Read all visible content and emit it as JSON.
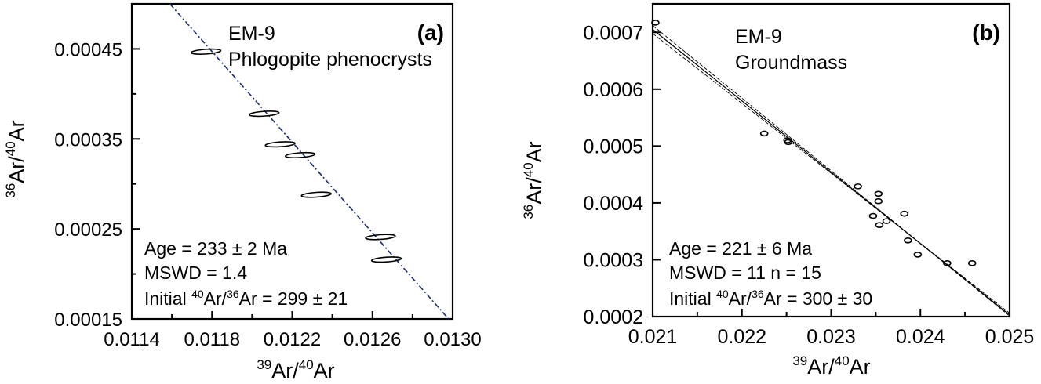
{
  "chart_data": [
    {
      "type": "scatter",
      "panel_label": "(a)",
      "sample": "EM-9",
      "material": "Phlogopite phenocrysts",
      "xlabel": {
        "pre": "",
        "sup1": "39",
        "mid": "Ar/",
        "sup2": "40",
        "post": "Ar"
      },
      "ylabel": {
        "pre": "",
        "sup1": "36",
        "mid": "Ar/",
        "sup2": "40",
        "post": "Ar"
      },
      "xlim": [
        0.0114,
        0.013
      ],
      "ylim": [
        0.00015,
        0.0005
      ],
      "xticks": [
        "0.0114",
        "0.0118",
        "0.0122",
        "0.0126",
        "0.0130"
      ],
      "xtick_values": [
        0.0114,
        0.0118,
        0.0122,
        0.0126,
        0.013
      ],
      "yticks": [
        "0.00015",
        "0.00025",
        "0.00035",
        "0.00045"
      ],
      "ytick_values": [
        0.00015,
        0.00025,
        0.00035,
        0.00045
      ],
      "points": [
        {
          "x": 0.01177,
          "y": 0.000447
        },
        {
          "x": 0.01206,
          "y": 0.000378
        },
        {
          "x": 0.01214,
          "y": 0.000344
        },
        {
          "x": 0.01224,
          "y": 0.000332
        },
        {
          "x": 0.01232,
          "y": 0.000288
        },
        {
          "x": 0.01264,
          "y": 0.000241
        },
        {
          "x": 0.01267,
          "y": 0.000216
        }
      ],
      "fit_line": [
        {
          "x": 0.01159,
          "y": 0.0005
        },
        {
          "x": 0.01298,
          "y": 0.00015
        }
      ],
      "annotations": {
        "age": "Age = 233 ± 2 Ma",
        "mswd": "MSWD = 1.4",
        "initial_pre": "Initial ",
        "initial_sup1": "40",
        "initial_mid": "Ar/",
        "initial_sup2": "36",
        "initial_post": "Ar = 299 ± 21"
      }
    },
    {
      "type": "scatter",
      "panel_label": "(b)",
      "sample": "EM-9",
      "material": "Groundmass",
      "xlabel": {
        "pre": "",
        "sup1": "39",
        "mid": "Ar/",
        "sup2": "40",
        "post": "Ar"
      },
      "ylabel": {
        "pre": "",
        "sup1": "36",
        "mid": "Ar/",
        "sup2": "40",
        "post": "Ar"
      },
      "xlim": [
        0.021,
        0.025
      ],
      "ylim": [
        0.0002,
        0.00075
      ],
      "xticks": [
        "0.021",
        "0.022",
        "0.023",
        "0.024",
        "0.025"
      ],
      "xtick_values": [
        0.021,
        0.022,
        0.023,
        0.024,
        0.025
      ],
      "yticks": [
        "0.0002",
        "0.0003",
        "0.0004",
        "0.0005",
        "0.0006",
        "0.0007"
      ],
      "ytick_values": [
        0.0002,
        0.0003,
        0.0004,
        0.0005,
        0.0006,
        0.0007
      ],
      "points": [
        {
          "x": 0.02103,
          "y": 0.000717
        },
        {
          "x": 0.02225,
          "y": 0.000522
        },
        {
          "x": 0.02251,
          "y": 0.00051
        },
        {
          "x": 0.02252,
          "y": 0.000507
        },
        {
          "x": 0.0233,
          "y": 0.000429
        },
        {
          "x": 0.02353,
          "y": 0.000416
        },
        {
          "x": 0.02353,
          "y": 0.000403
        },
        {
          "x": 0.02347,
          "y": 0.000377
        },
        {
          "x": 0.02354,
          "y": 0.000361
        },
        {
          "x": 0.02362,
          "y": 0.000368
        },
        {
          "x": 0.02382,
          "y": 0.000381
        },
        {
          "x": 0.02386,
          "y": 0.000334
        },
        {
          "x": 0.02397,
          "y": 0.000309
        },
        {
          "x": 0.0243,
          "y": 0.000294
        },
        {
          "x": 0.02458,
          "y": 0.000294
        }
      ],
      "fit_line": [
        {
          "x": 0.021,
          "y": 0.000705
        },
        {
          "x": 0.025,
          "y": 0.000203
        }
      ],
      "envelope": [
        [
          {
            "x": 0.021,
            "y": 0.000712
          },
          {
            "x": 0.025,
            "y": 0.000201
          }
        ],
        [
          {
            "x": 0.021,
            "y": 0.000698
          },
          {
            "x": 0.025,
            "y": 0.000206
          }
        ]
      ],
      "annotations": {
        "age": "Age = 221 ± 6 Ma",
        "mswd": "MSWD = 11  n = 15",
        "initial_pre": "Initial ",
        "initial_sup1": "40",
        "initial_mid": "Ar/",
        "initial_sup2": "36",
        "initial_post": "Ar = 300 ± 30"
      }
    }
  ]
}
